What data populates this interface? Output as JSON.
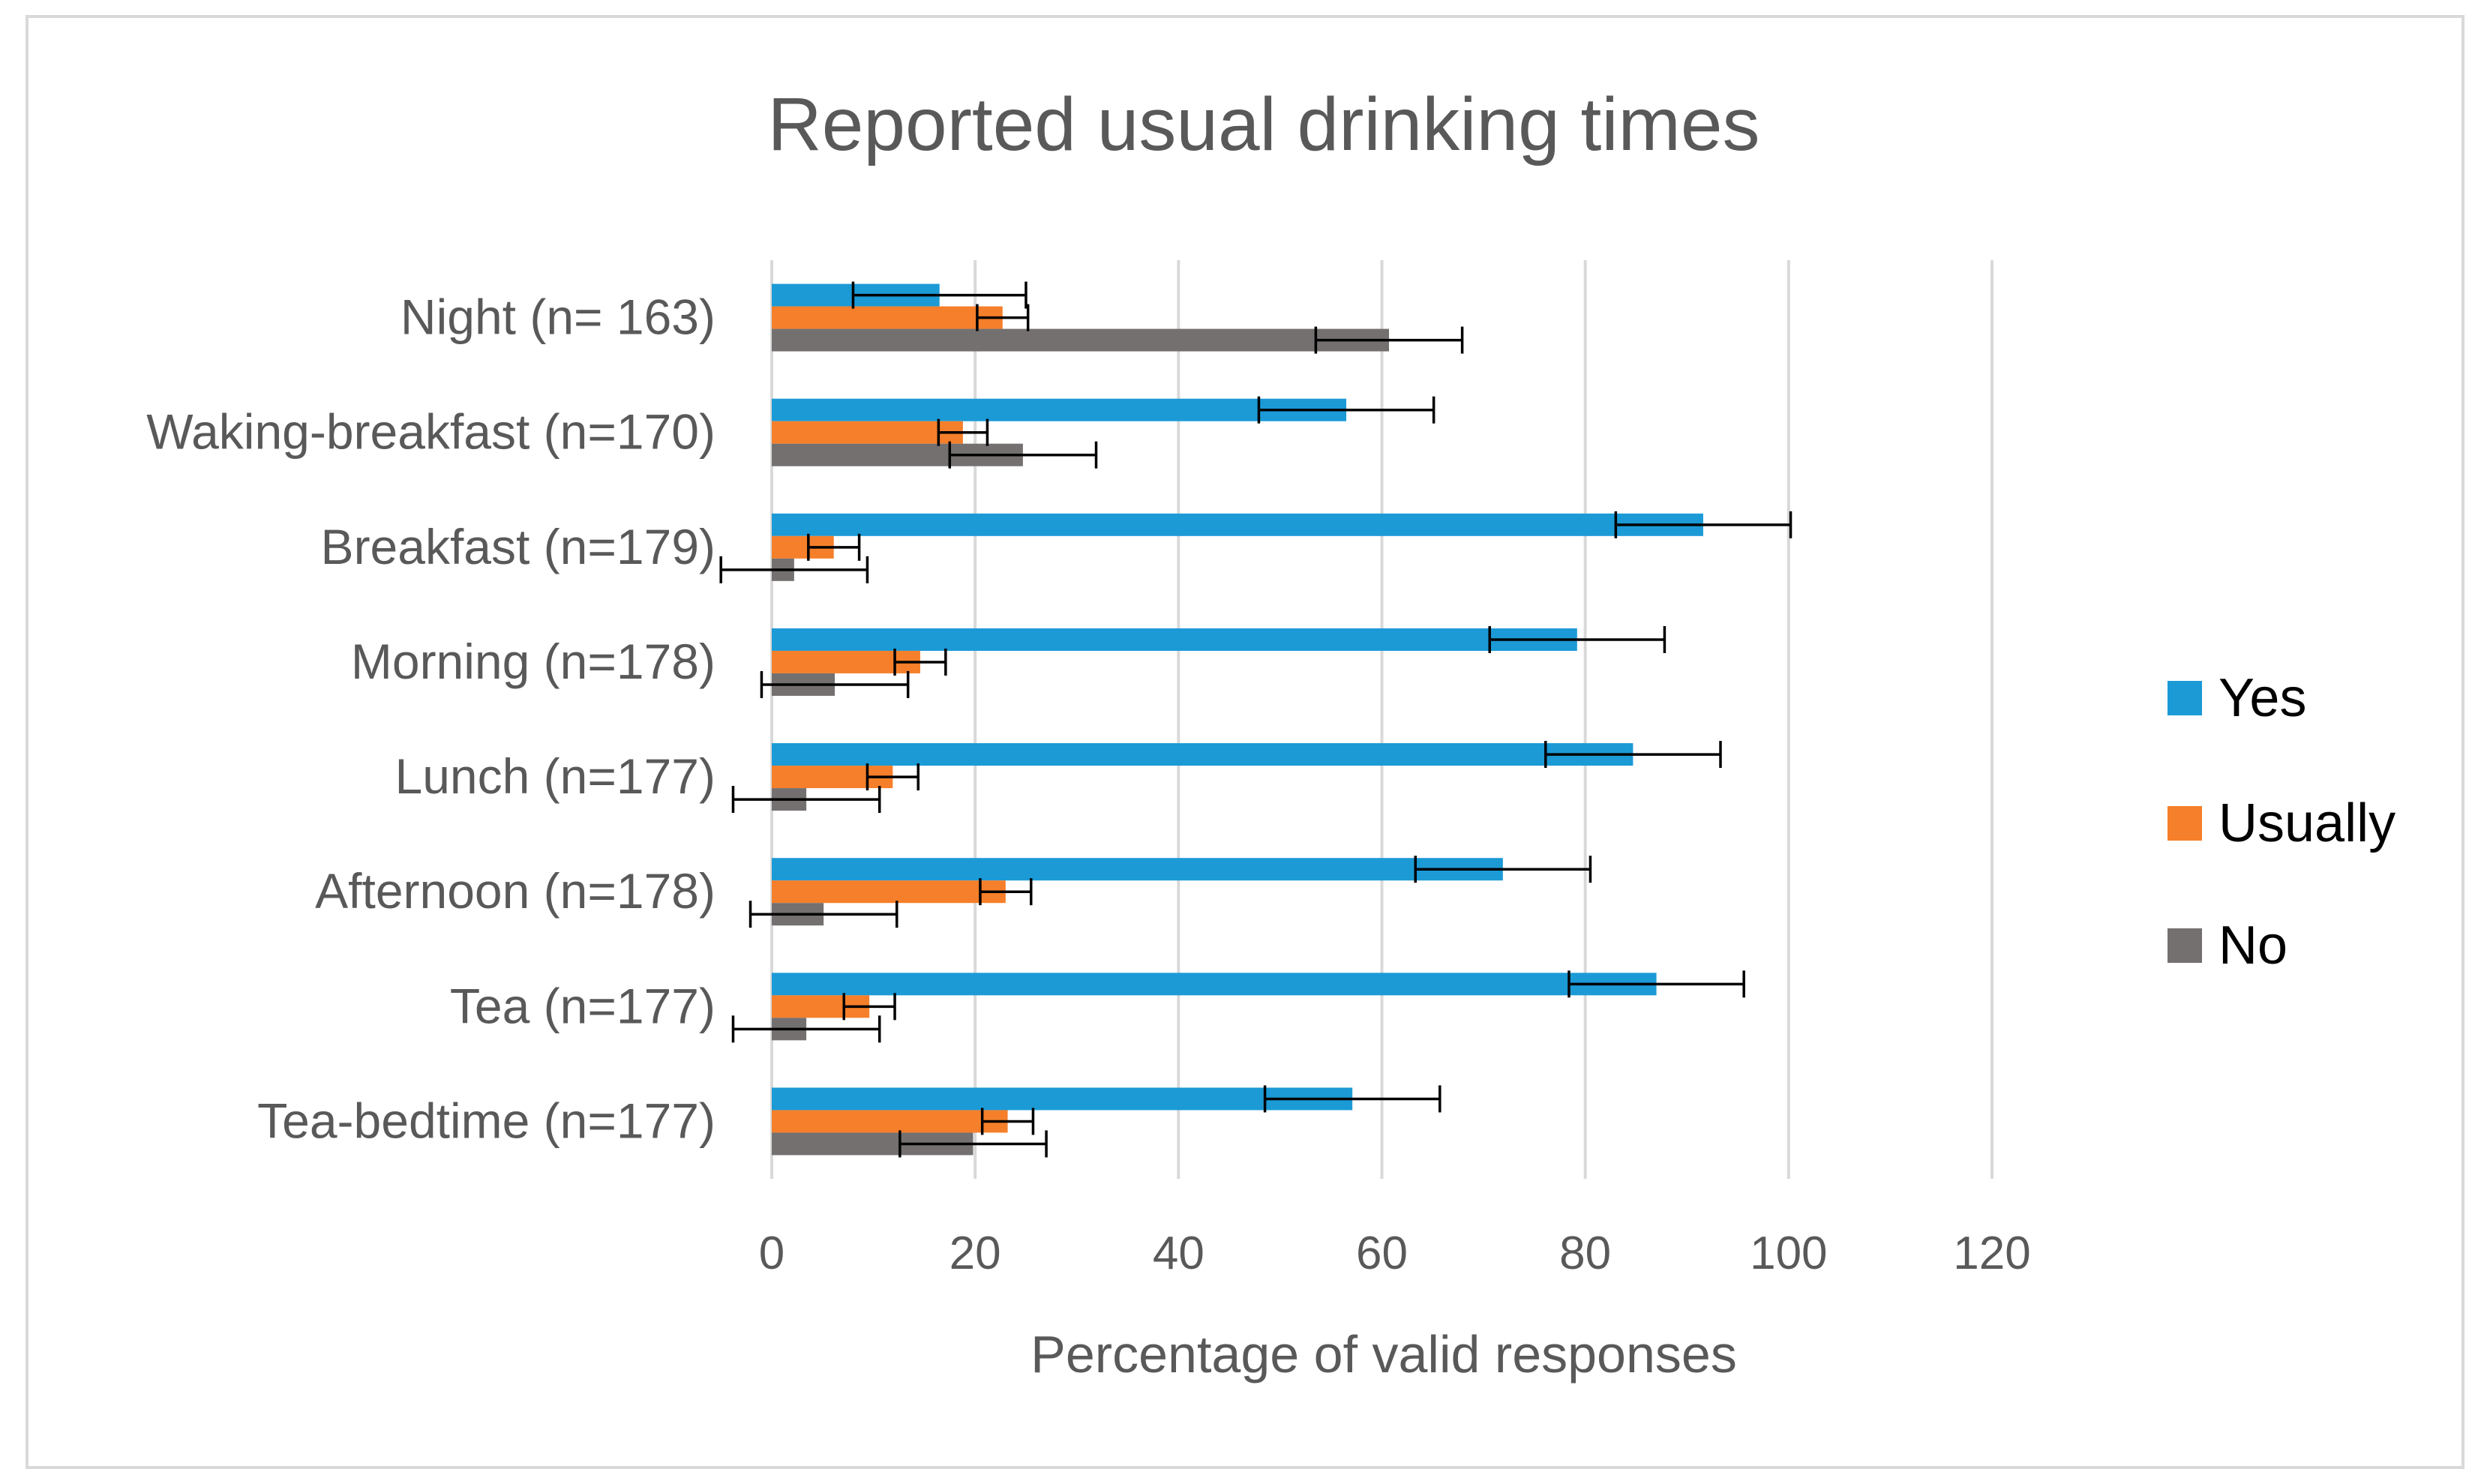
{
  "chart_data": {
    "type": "bar",
    "orientation": "horizontal",
    "title": "Reported usual drinking times",
    "xlabel": "Percentage of valid responses",
    "ylabel": "",
    "xlim": [
      0,
      120
    ],
    "xticks": [
      "0",
      "20",
      "40",
      "60",
      "80",
      "100",
      "120"
    ],
    "xtick_values": [
      0,
      20,
      40,
      60,
      80,
      100,
      120
    ],
    "grid": true,
    "legend_position": "right",
    "categories": [
      "Night (n= 163)",
      "Waking-breakfast (n=170)",
      "Breakfast (n=179)",
      "Morning (n=178)",
      "Lunch (n=177)",
      "Afternoon (n=178)",
      "Tea (n=177)",
      "Tea-bedtime (n=177)"
    ],
    "series": [
      {
        "name": "Yes",
        "color": "#1b9ad6",
        "values": [
          16.5,
          56.5,
          91.6,
          79.2,
          84.7,
          71.9,
          87.0,
          57.1
        ],
        "error": [
          8.5,
          8.6,
          8.6,
          8.6,
          8.6,
          8.6,
          8.6,
          8.6
        ]
      },
      {
        "name": "Usually",
        "color": "#f57f2a",
        "values": [
          22.7,
          18.8,
          6.1,
          14.6,
          11.9,
          23.0,
          9.6,
          23.2
        ],
        "error": [
          2.5,
          2.4,
          2.5,
          2.5,
          2.5,
          2.5,
          2.5,
          2.5
        ]
      },
      {
        "name": "No",
        "color": "#747070",
        "values": [
          60.7,
          24.7,
          2.2,
          6.2,
          3.4,
          5.1,
          3.4,
          19.8
        ],
        "error": [
          7.2,
          7.2,
          7.2,
          7.2,
          7.2,
          7.2,
          7.2,
          7.2
        ]
      }
    ]
  }
}
